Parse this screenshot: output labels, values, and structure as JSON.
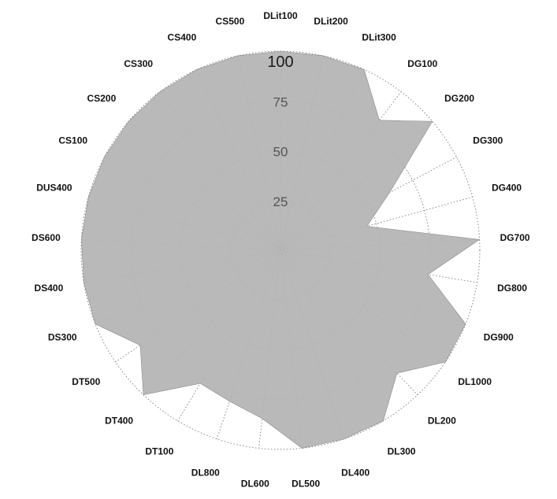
{
  "chart_data": {
    "type": "radar",
    "title": "",
    "grid": true,
    "rlim": [
      0,
      100
    ],
    "ring_ticks": [
      25,
      50,
      75,
      100
    ],
    "fill_color": "#b4b4b4",
    "grid_color": "#7a7a7a",
    "categories": [
      "DLit100",
      "DLit200",
      "DLit300",
      "DG100",
      "DG200",
      "DG300",
      "DG400",
      "DG700",
      "DG800",
      "DG900",
      "DL1000",
      "DL200",
      "DL300",
      "DL400",
      "DL500",
      "DL600",
      "DL800",
      "DT100",
      "DT400",
      "DT500",
      "DS300",
      "DS400",
      "DS600",
      "DUS400",
      "CS100",
      "CS200",
      "CS300",
      "CS400",
      "CS500"
    ],
    "series": [
      {
        "values": [
          100,
          100,
          100,
          82,
          100,
          62,
          45,
          100,
          75,
          100,
          100,
          85,
          100,
          100,
          100,
          85,
          80,
          78,
          100,
          85,
          100,
          100,
          100,
          100,
          100,
          100,
          100,
          100,
          100
        ]
      }
    ]
  }
}
